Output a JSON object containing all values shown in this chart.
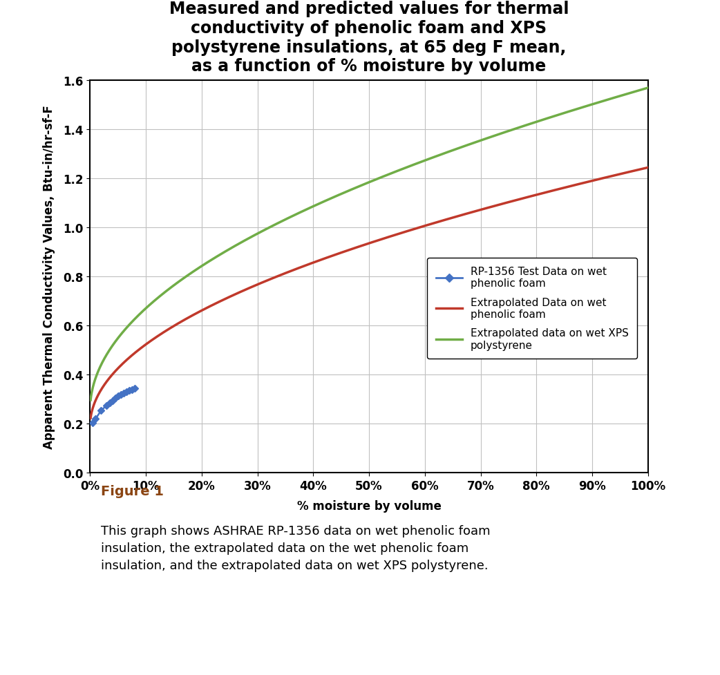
{
  "title_line1": "Measured and predicted values for thermal",
  "title_line2": "conductivity of phenolic foam and XPS",
  "title_line3": "polystyrene insulations, at 65 deg F mean,",
  "title_line4": "as a function of % moisture by volume",
  "xlabel": "% moisture by volume",
  "ylabel": "Apparent Thermal Conductivity Values, Btu-in/hr-sf-F",
  "xlim": [
    0,
    1.0
  ],
  "ylim": [
    0.0,
    1.6
  ],
  "xticks": [
    0,
    0.1,
    0.2,
    0.3,
    0.4,
    0.5,
    0.6,
    0.7,
    0.8,
    0.9,
    1.0
  ],
  "yticks": [
    0.0,
    0.2,
    0.4,
    0.6,
    0.8,
    1.0,
    1.2,
    1.4,
    1.6
  ],
  "xtick_labels": [
    "0%",
    "10%",
    "20%",
    "30%",
    "40%",
    "50%",
    "60%",
    "70%",
    "80%",
    "90%",
    "100%"
  ],
  "ytick_labels": [
    "0.0",
    "0.2",
    "0.4",
    "0.6",
    "0.8",
    "1.0",
    "1.2",
    "1.4",
    "1.6"
  ],
  "blue_x": [
    0.005,
    0.01,
    0.02,
    0.03,
    0.035,
    0.04,
    0.045,
    0.05,
    0.055,
    0.06,
    0.065,
    0.07,
    0.075,
    0.08
  ],
  "blue_y": [
    0.205,
    0.22,
    0.255,
    0.275,
    0.285,
    0.295,
    0.305,
    0.315,
    0.32,
    0.325,
    0.33,
    0.335,
    0.34,
    0.345
  ],
  "red_intercept": 0.19,
  "red_slope": 1.055,
  "red_power": 0.5,
  "green_intercept": 0.255,
  "green_slope": 1.315,
  "green_power": 0.5,
  "blue_color": "#4472C4",
  "red_color": "#C0392B",
  "green_color": "#70AD47",
  "background_color": "#FFFFFF",
  "plot_bg_color": "#FFFFFF",
  "grid_color": "#C0C0C0",
  "legend_label_blue": "RP-1356 Test Data on wet\nphenolic foam",
  "legend_label_red": "Extrapolated Data on wet\nphenolic foam",
  "legend_label_green": "Extrapolated data on wet XPS\npolystyrene",
  "figure_caption_title": "Figure 1",
  "figure_caption_body": "This graph shows ASHRAE RP-1356 data on wet phenolic foam\ninsulation, the extrapolated data on the wet phenolic foam\ninsulation, and the extrapolated data on wet XPS polystyrene.",
  "title_fontsize": 17,
  "axis_label_fontsize": 12,
  "tick_fontsize": 12,
  "legend_fontsize": 11,
  "caption_title_fontsize": 14,
  "caption_body_fontsize": 13
}
